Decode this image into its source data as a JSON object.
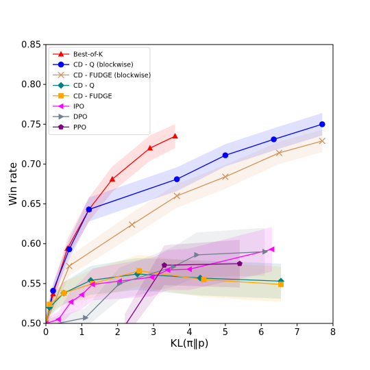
{
  "chart_data": {
    "type": "line",
    "title": "",
    "xlabel": "KL(π‖p)",
    "ylabel": "Win rate",
    "xlim": [
      0,
      8
    ],
    "ylim": [
      0.5,
      0.85
    ],
    "xticks": [
      0,
      1,
      2,
      3,
      4,
      5,
      6,
      7,
      8
    ],
    "yticks": [
      0.5,
      0.55,
      0.6,
      0.65,
      0.7,
      0.75,
      0.8,
      0.85
    ],
    "grid": false,
    "legend_position": "top-left",
    "series": [
      {
        "name": "Best-of-K",
        "color": "#ff0000",
        "marker": "triangle-up",
        "x": [
          0,
          0.2,
          0.6,
          1.2,
          1.85,
          2.9,
          3.6
        ],
        "y": [
          0.5,
          0.537,
          0.594,
          0.643,
          0.681,
          0.72,
          0.735
        ],
        "band": [
          0.008,
          0.01,
          0.012,
          0.015,
          0.016,
          0.016,
          0.015
        ]
      },
      {
        "name": "CD - Q (blockwise)",
        "color": "#0000ff",
        "marker": "circle",
        "x": [
          0,
          0.2,
          0.65,
          1.2,
          3.65,
          5.0,
          6.35,
          7.7
        ],
        "y": [
          0.5,
          0.541,
          0.593,
          0.643,
          0.681,
          0.711,
          0.731,
          0.75
        ],
        "band": [
          0.008,
          0.01,
          0.012,
          0.015,
          0.015,
          0.014,
          0.014,
          0.014
        ]
      },
      {
        "name": "CD - FUDGE (blockwise)",
        "color": "#d2935a",
        "marker": "x",
        "x": [
          0,
          0.65,
          2.4,
          3.65,
          5.0,
          6.5,
          7.7
        ],
        "y": [
          0.5,
          0.572,
          0.624,
          0.66,
          0.684,
          0.714,
          0.729
        ],
        "band": [
          0.008,
          0.012,
          0.015,
          0.015,
          0.015,
          0.014,
          0.014
        ]
      },
      {
        "name": "CD - Q",
        "color": "#008080",
        "marker": "diamond",
        "x": [
          0,
          0.1,
          0.5,
          1.25,
          2.55,
          4.3,
          6.55
        ],
        "y": [
          0.5,
          0.52,
          0.538,
          0.554,
          0.562,
          0.557,
          0.553
        ],
        "band": [
          0.006,
          0.01,
          0.014,
          0.018,
          0.02,
          0.022,
          0.022
        ]
      },
      {
        "name": "CD - FUDGE",
        "color": "#ffa500",
        "marker": "square",
        "x": [
          0,
          0.1,
          0.5,
          1.3,
          2.6,
          4.4,
          6.55
        ],
        "y": [
          0.5,
          0.524,
          0.538,
          0.55,
          0.566,
          0.555,
          0.549
        ],
        "band": [
          0.006,
          0.01,
          0.014,
          0.018,
          0.02,
          0.022,
          0.022
        ]
      },
      {
        "name": "IPO",
        "color": "#ff00ff",
        "marker": "triangle-left",
        "x": [
          0,
          0.35,
          0.7,
          1.0,
          1.3,
          2.05,
          2.95,
          3.4,
          4.0,
          6.3
        ],
        "y": [
          0.5,
          0.505,
          0.527,
          0.536,
          0.549,
          0.553,
          0.558,
          0.567,
          0.568,
          0.593
        ],
        "band": [
          0.006,
          0.01,
          0.015,
          0.018,
          0.02,
          0.022,
          0.024,
          0.025,
          0.026,
          0.028
        ]
      },
      {
        "name": "DPO",
        "color": "#708090",
        "marker": "triangle-right",
        "x": [
          0,
          1.1,
          2.05,
          3.55,
          4.2,
          6.1
        ],
        "y": [
          0.497,
          0.507,
          0.55,
          0.571,
          0.586,
          0.59
        ],
        "band": [
          0.008,
          0.012,
          0.02,
          0.025,
          0.028,
          0.03
        ]
      },
      {
        "name": "PPO",
        "color": "#800080",
        "marker": "pentagon",
        "x": [
          2.2,
          3.3,
          5.4
        ],
        "y": [
          0.497,
          0.573,
          0.575
        ],
        "band": [
          0.015,
          0.025,
          0.03
        ]
      }
    ]
  }
}
